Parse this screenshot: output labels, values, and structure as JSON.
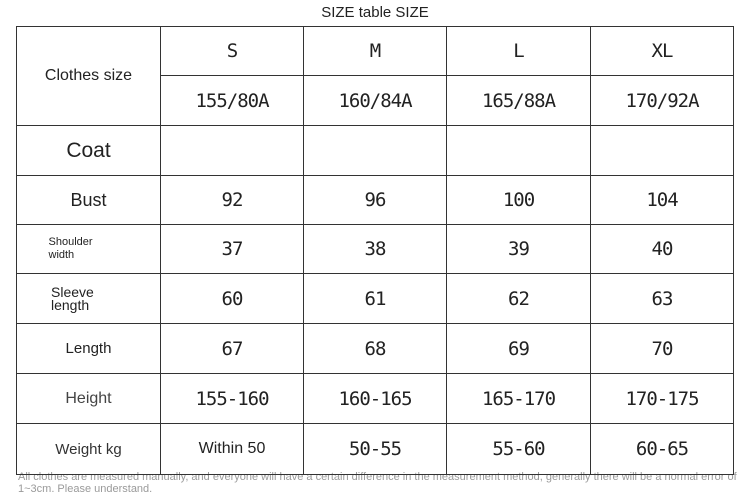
{
  "title": "SIZE table SIZE",
  "table": {
    "header": {
      "label": "Clothes size",
      "sizes": [
        "S",
        "M",
        "L",
        "XL"
      ],
      "codes": [
        "155/80A",
        "160/84A",
        "165/88A",
        "170/92A"
      ]
    },
    "rows": [
      {
        "label": "Coat"
      },
      {
        "label": "Bust",
        "values": [
          "92",
          "96",
          "100",
          "104"
        ]
      },
      {
        "label": "Shoulder width",
        "values": [
          "37",
          "38",
          "39",
          "40"
        ]
      },
      {
        "label": "Sleeve length",
        "values": [
          "60",
          "61",
          "62",
          "63"
        ]
      },
      {
        "label": "Length",
        "values": [
          "67",
          "68",
          "69",
          "70"
        ]
      },
      {
        "label": "Height",
        "values": [
          "155-160",
          "160-165",
          "165-170",
          "170-175"
        ]
      },
      {
        "label": "Weight kg",
        "values": [
          "Within 50",
          "50-55",
          "55-60",
          "60-65"
        ]
      }
    ]
  },
  "note": "All clothes are measured manually, and everyone will have a certain difference in the measurement method, generally there will be a normal error of 1~3cm. Please understand."
}
